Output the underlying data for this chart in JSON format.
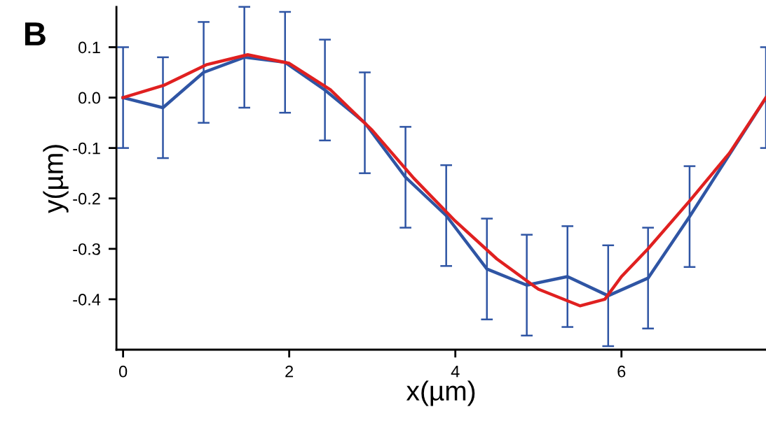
{
  "chart_data": {
    "type": "line",
    "xlabel": "x(µm)",
    "ylabel": "y(µm)",
    "annotations": [
      "B"
    ],
    "series": [
      {
        "color": "#2f55a4",
        "x": [
          0,
          0.48,
          0.97,
          1.46,
          1.95,
          2.43,
          2.91,
          3.4,
          3.89,
          4.38,
          4.86,
          5.35,
          5.84,
          6.32,
          6.82,
          7.74
        ],
        "values": [
          0.0,
          -0.02,
          0.05,
          0.08,
          0.07,
          0.015,
          -0.05,
          -0.158,
          -0.234,
          -0.34,
          -0.372,
          -0.355,
          -0.393,
          -0.358,
          -0.236,
          0.0
        ],
        "errors": [
          0.1,
          0.1,
          0.1,
          0.1,
          0.1,
          0.1,
          0.1,
          0.1,
          0.1,
          0.1,
          0.1,
          0.1,
          0.1,
          0.1,
          0.1,
          0.1
        ]
      },
      {
        "color": "#e02020",
        "x": [
          0,
          0.5,
          1,
          1.5,
          2,
          2.5,
          3,
          3.5,
          4,
          4.5,
          5,
          5.5,
          5.8,
          6,
          6.32,
          6.82,
          7.3,
          7.74
        ],
        "values": [
          0.0,
          0.025,
          0.065,
          0.085,
          0.068,
          0.015,
          -0.065,
          -0.16,
          -0.245,
          -0.32,
          -0.38,
          -0.413,
          -0.4,
          -0.355,
          -0.3,
          -0.205,
          -0.11,
          0.0
        ]
      }
    ],
    "xlim": [
      -0.08,
      7.74
    ],
    "xticks": [
      0,
      2,
      4,
      6
    ],
    "ylim": [
      -0.5,
      0.18
    ],
    "yticks": [
      {
        "value": 0.1,
        "label": "0.1"
      },
      {
        "value": 0,
        "label": "0.0"
      },
      {
        "value": -0.1,
        "label": "-0.1"
      },
      {
        "value": -0.2,
        "label": "-0.2"
      },
      {
        "value": -0.3,
        "label": "-0.3"
      },
      {
        "value": -0.4,
        "label": "-0.4"
      }
    ],
    "grid": false,
    "legend": false,
    "marker": "none",
    "line_style": "solid"
  }
}
